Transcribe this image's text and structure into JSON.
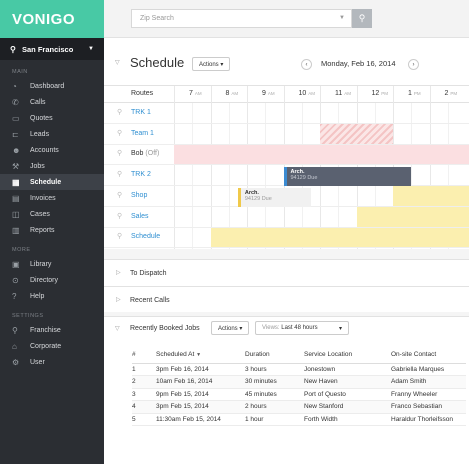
{
  "app": {
    "logo": "VONIGO"
  },
  "location": {
    "name": "San Francisco"
  },
  "sidebar": {
    "sections": [
      {
        "label": "MAIN",
        "items": [
          {
            "label": "Dashboard",
            "icon": "dashboard-icon",
            "glyph": "◔"
          },
          {
            "label": "Calls",
            "icon": "phone-icon",
            "glyph": "✆"
          },
          {
            "label": "Quotes",
            "icon": "quote-icon",
            "glyph": "▭"
          },
          {
            "label": "Leads",
            "icon": "lead-icon",
            "glyph": "⊏"
          },
          {
            "label": "Accounts",
            "icon": "account-icon",
            "glyph": "☻"
          },
          {
            "label": "Jobs",
            "icon": "jobs-icon",
            "glyph": "⚒"
          },
          {
            "label": "Schedule",
            "icon": "calendar-icon",
            "glyph": "▦",
            "active": true
          },
          {
            "label": "Invoices",
            "icon": "invoice-icon",
            "glyph": "▤"
          },
          {
            "label": "Cases",
            "icon": "case-icon",
            "glyph": "◫"
          },
          {
            "label": "Reports",
            "icon": "report-icon",
            "glyph": "▥"
          }
        ]
      },
      {
        "label": "MORE",
        "items": [
          {
            "label": "Library",
            "icon": "library-icon",
            "glyph": "▣"
          },
          {
            "label": "Directory",
            "icon": "directory-icon",
            "glyph": "⊙"
          },
          {
            "label": "Help",
            "icon": "help-icon",
            "glyph": "?"
          }
        ]
      },
      {
        "label": "SETTINGS",
        "items": [
          {
            "label": "Franchise",
            "icon": "pin-icon",
            "glyph": "⚲"
          },
          {
            "label": "Corporate",
            "icon": "building-icon",
            "glyph": "⌂"
          },
          {
            "label": "User",
            "icon": "gear-icon",
            "glyph": "⚙"
          }
        ]
      }
    ]
  },
  "search": {
    "placeholder": "Zip Search"
  },
  "schedule": {
    "title": "Schedule",
    "actions_label": "Actions",
    "date": "Monday, Feb 16, 2014",
    "routes_header": "Routes",
    "hours": [
      {
        "h": "7",
        "ap": "AM"
      },
      {
        "h": "8",
        "ap": "AM"
      },
      {
        "h": "9",
        "ap": "AM"
      },
      {
        "h": "10",
        "ap": "AM"
      },
      {
        "h": "11",
        "ap": "AM"
      },
      {
        "h": "12",
        "ap": "PM"
      },
      {
        "h": "1",
        "ap": "PM"
      },
      {
        "h": "2",
        "ap": "PM"
      }
    ],
    "routes": [
      {
        "name": "TRK 1"
      },
      {
        "name": "Team 1"
      },
      {
        "name": "Bob",
        "status": "(Off)"
      },
      {
        "name": "TRK 2"
      },
      {
        "name": "Shop"
      },
      {
        "name": "Sales"
      },
      {
        "name": "Schedule"
      }
    ],
    "jobs": [
      {
        "title": "Arch.",
        "sub": "94129 Due",
        "route": "TRK 2",
        "start": "10:00 AM",
        "end": "1:30 PM"
      },
      {
        "title": "Arch.",
        "sub": "94129 Due",
        "route": "Shop",
        "start": "8:45 AM",
        "end": "10:45 AM"
      }
    ]
  },
  "panels": {
    "to_dispatch": "To Dispatch",
    "recent_calls": "Recent Calls",
    "recently_booked": "Recently Booked Jobs",
    "actions_label": "Actions",
    "views_label": "Views:",
    "views_value": "Last 48 hours"
  },
  "booked_table": {
    "headers": [
      "#",
      "Scheduled At",
      "Duration",
      "Service Location",
      "On-site Contact"
    ],
    "rows": [
      [
        "1",
        "3pm Feb 16, 2014",
        "3 hours",
        "Jonestown",
        "Gabriella Marques"
      ],
      [
        "2",
        "10am Feb 16, 2014",
        "30 minutes",
        "New Haven",
        "Adam Smith"
      ],
      [
        "3",
        "9pm Feb 15, 2014",
        "45 minutes",
        "Port of Questo",
        "Franny Wheeler"
      ],
      [
        "4",
        "3pm Feb 15, 2014",
        "2 hours",
        "New Stanford",
        "Franco Sebastian"
      ],
      [
        "5",
        "11:30am Feb 15, 2014",
        "1 hour",
        "Forth Width",
        "Haraldur Thorleifsson"
      ]
    ]
  }
}
